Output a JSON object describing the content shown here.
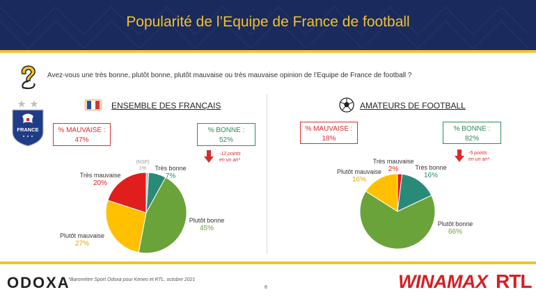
{
  "header": {
    "title": "Popularité de l’Equipe de France de football"
  },
  "question": "Avez-vous une très bonne, plutôt bonne, plutôt mauvaise ou très mauvaise opinion de l’Equipe de France de football ?",
  "crest": {
    "text": "FRANCE"
  },
  "colors": {
    "header_bg": "#1a2a5c",
    "accent_gold": "#f2c12e",
    "tres_bonne": "#2a8a78",
    "plutot_bonne": "#6aa33a",
    "plutot_mauvaise": "#ffc000",
    "tres_mauvaise": "#e01e1e",
    "nsp": "#bfbfbf"
  },
  "panels": [
    {
      "title": "ENSEMBLE DES FRANÇAIS",
      "icon": "france-flag-icon",
      "bad_box": {
        "label": "% MAUVAISE :",
        "value": "47%"
      },
      "good_box": {
        "label": "% BONNE :",
        "value": "52%"
      },
      "trend": "-12 points\nen un an*",
      "labels": [
        {
          "name": "(NSP)",
          "value": "1%"
        },
        {
          "name": "Très bonne",
          "value": "7%"
        },
        {
          "name": "Plutôt bonne",
          "value": "45%"
        },
        {
          "name": "Plutôt mauvaise",
          "value": "27%"
        },
        {
          "name": "Très mauvaise",
          "value": "20%"
        }
      ]
    },
    {
      "title": "AMATEURS DE FOOTBALL",
      "icon": "soccer-ball-icon",
      "bad_box": {
        "label": "% MAUVAISE :",
        "value": "18%"
      },
      "good_box": {
        "label": "% BONNE :",
        "value": "82%"
      },
      "trend": "-5 points\nen un an*",
      "labels": [
        {
          "name": "Très mauvaise",
          "value": "2%"
        },
        {
          "name": "Très bonne",
          "value": "16%"
        },
        {
          "name": "Plutôt bonne",
          "value": "66%"
        },
        {
          "name": "Plutôt mauvaise",
          "value": "16%"
        }
      ]
    }
  ],
  "chart_data": [
    {
      "type": "pie",
      "title": "ENSEMBLE DES FRANÇAIS",
      "categories": [
        "(NSP)",
        "Très bonne",
        "Plutôt bonne",
        "Plutôt mauvaise",
        "Très mauvaise"
      ],
      "values": [
        1,
        7,
        45,
        27,
        20
      ],
      "unit": "%"
    },
    {
      "type": "pie",
      "title": "AMATEURS DE FOOTBALL",
      "categories": [
        "Très mauvaise",
        "Très bonne",
        "Plutôt bonne",
        "Plutôt mauvaise"
      ],
      "values": [
        2,
        16,
        66,
        16
      ],
      "unit": "%"
    }
  ],
  "footer": {
    "logo_left": "ODOXA",
    "source": "*Baromètre Sport Odoxa pour Keneo et RTL, octobre 2021",
    "page": "8",
    "logo_mid": "WINAMAX",
    "logo_right": "RTL"
  }
}
